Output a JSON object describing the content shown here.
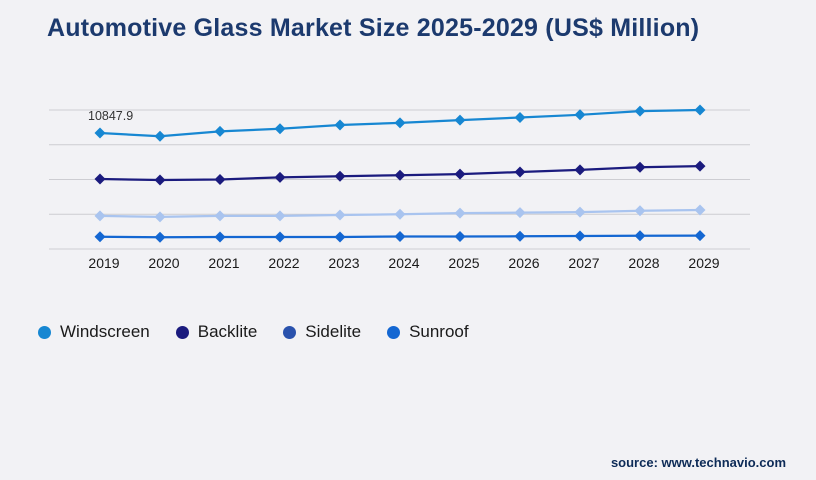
{
  "page": {
    "title": "Automotive Glass Market Size 2025-2029 (US$ Million)",
    "source": "source: www.technavio.com",
    "colors": {
      "background": "#f2f2f5",
      "title": "#1c3a6e",
      "axis_label": "#1a1a1a",
      "grid": "#cdcdd2",
      "annotation": "#333333",
      "source": "#0d2b57",
      "legend_text": "#1a1a1a"
    }
  },
  "chart_data": {
    "type": "line",
    "title": "Automotive Glass Market Size 2025-2029 (US$ Million)",
    "xlabel": "",
    "ylabel": "",
    "categories": [
      "2019",
      "2020",
      "2021",
      "2022",
      "2023",
      "2024",
      "2025",
      "2026",
      "2027",
      "2028",
      "2029"
    ],
    "series": [
      {
        "name": "Windscreen",
        "color": "#1787d2",
        "values": [
          10847.9,
          10550,
          11000,
          11250,
          11600,
          11800,
          12050,
          12300,
          12550,
          12900,
          13000
        ]
      },
      {
        "name": "Backlite",
        "color": "#1b1b7e",
        "values": [
          6550,
          6450,
          6500,
          6700,
          6800,
          6900,
          7000,
          7200,
          7400,
          7650,
          7750
        ]
      },
      {
        "name": "Sidelite",
        "color": "#a9c4ef",
        "legend_color": "#2a52ad",
        "values": [
          3100,
          3000,
          3100,
          3100,
          3180,
          3250,
          3350,
          3400,
          3450,
          3580,
          3650
        ]
      },
      {
        "name": "Sunroof",
        "color": "#1467d2",
        "values": [
          1150,
          1100,
          1120,
          1120,
          1120,
          1170,
          1170,
          1190,
          1220,
          1240,
          1250
        ]
      }
    ],
    "annotation": {
      "text": "10847.9",
      "series": "Windscreen",
      "category": "2019"
    },
    "ylim": [
      0,
      13000
    ],
    "y_axis_labels_visible": false,
    "grid": "horizontal",
    "gridline_count": 5,
    "marker_shape": "diamond",
    "legend_position": "bottom-left"
  }
}
